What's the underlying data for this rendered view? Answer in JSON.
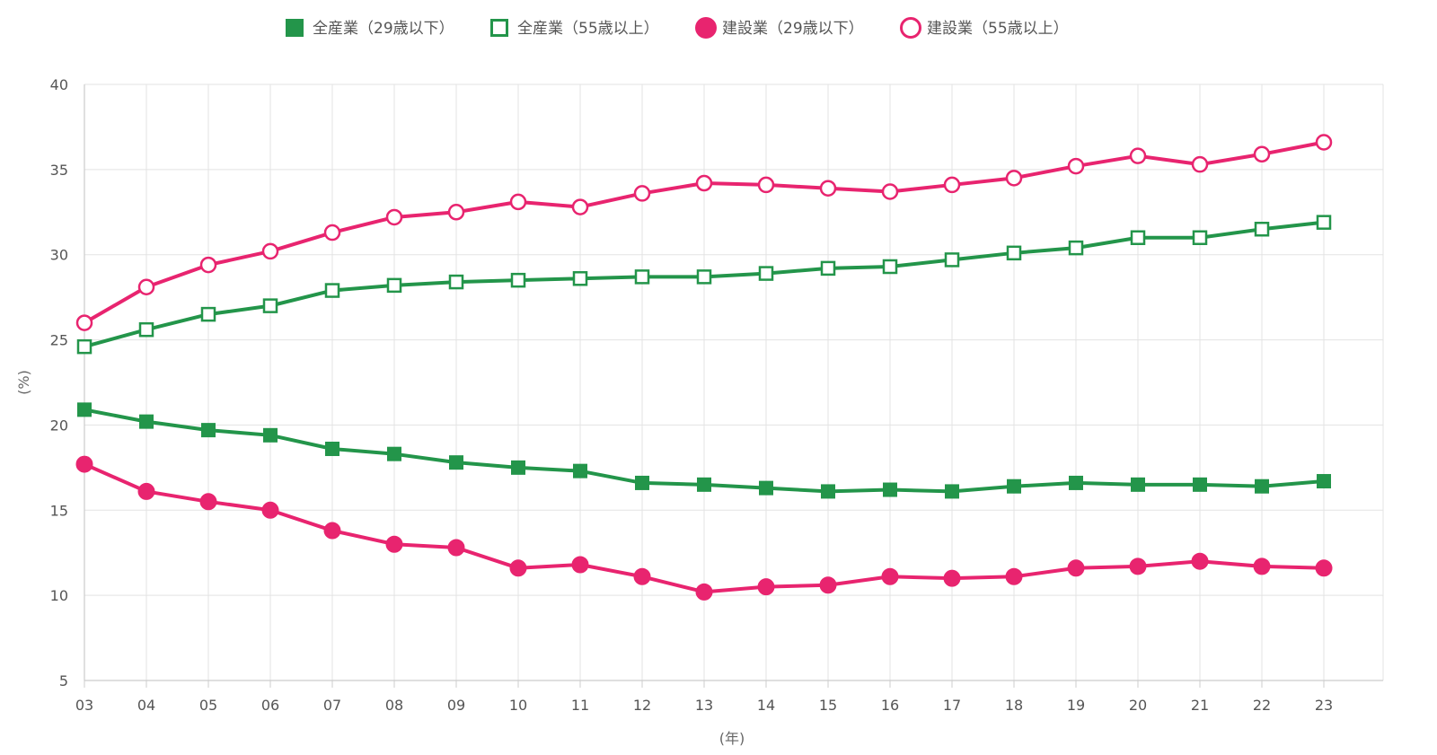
{
  "chart_data": {
    "type": "line",
    "title": "",
    "xlabel": "(年)",
    "ylabel": "(%)",
    "ylim": [
      5,
      40
    ],
    "yticks": [
      5,
      10,
      15,
      20,
      25,
      30,
      35,
      40
    ],
    "grid": true,
    "legend_position": "top",
    "categories": [
      "03",
      "04",
      "05",
      "06",
      "07",
      "08",
      "09",
      "10",
      "11",
      "12",
      "13",
      "14",
      "15",
      "16",
      "17",
      "18",
      "19",
      "20",
      "21",
      "22",
      "23"
    ],
    "series": [
      {
        "name": "全産業（29歳以下）",
        "color": "#23954a",
        "marker": "square-filled",
        "values": [
          20.9,
          20.2,
          19.7,
          19.4,
          18.6,
          18.3,
          17.8,
          17.5,
          17.3,
          16.6,
          16.5,
          16.3,
          16.1,
          16.2,
          16.1,
          16.4,
          16.6,
          16.5,
          16.5,
          16.4,
          16.7
        ]
      },
      {
        "name": "全産業（55歳以上）",
        "color": "#23954a",
        "marker": "square-open",
        "values": [
          24.6,
          25.6,
          26.5,
          27.0,
          27.9,
          28.2,
          28.4,
          28.5,
          28.6,
          28.7,
          28.7,
          28.9,
          29.2,
          29.3,
          29.7,
          30.1,
          30.4,
          31.0,
          31.0,
          31.5,
          31.9
        ]
      },
      {
        "name": "建設業（29歳以下）",
        "color": "#e8246f",
        "marker": "circle-filled",
        "values": [
          17.7,
          16.1,
          15.5,
          15.0,
          13.8,
          13.0,
          12.8,
          11.6,
          11.8,
          11.1,
          10.2,
          10.5,
          10.6,
          11.1,
          11.0,
          11.1,
          11.6,
          11.7,
          12.0,
          11.7,
          11.6
        ]
      },
      {
        "name": "建設業（55歳以上）",
        "color": "#e8246f",
        "marker": "circle-open",
        "values": [
          26.0,
          28.1,
          29.4,
          30.2,
          31.3,
          32.2,
          32.5,
          33.1,
          32.8,
          33.6,
          34.2,
          34.1,
          33.9,
          33.7,
          34.1,
          34.5,
          35.2,
          35.8,
          35.3,
          35.9,
          36.6
        ]
      }
    ]
  }
}
